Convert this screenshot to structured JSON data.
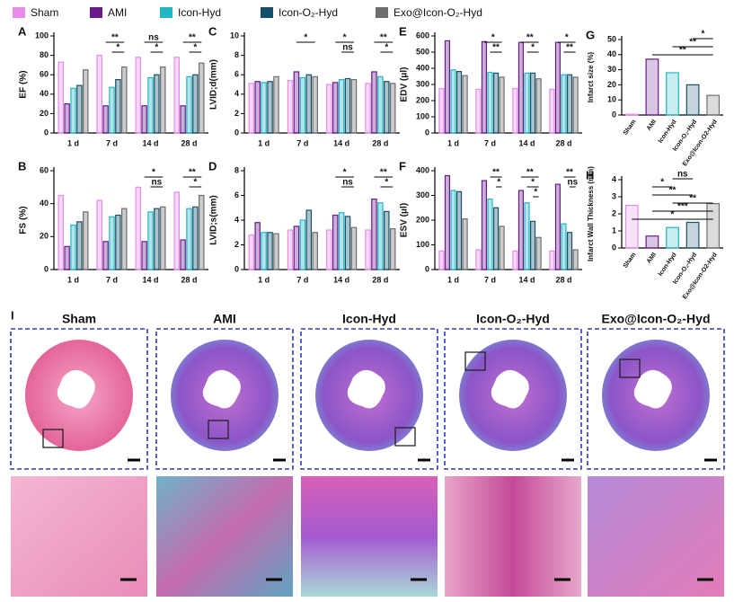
{
  "legend": [
    {
      "name": "Sham",
      "color": "#e58de8"
    },
    {
      "name": "AMI",
      "color": "#6a1b8a"
    },
    {
      "name": "Icon-Hyd",
      "color": "#22b5c2"
    },
    {
      "name": "Icon-O₂-Hyd",
      "color": "#17506a"
    },
    {
      "name": "Exo@Icon-O₂-Hyd",
      "color": "#6e6e6e"
    }
  ],
  "chart_data": [
    {
      "type": "grouped",
      "panel": "A",
      "ylabel": "EF (%)",
      "categories": [
        "1 d",
        "7 d",
        "14 d",
        "28 d"
      ],
      "ylim": [
        0,
        100
      ],
      "yticks": [
        0,
        20,
        40,
        60,
        80,
        100
      ],
      "series": [
        {
          "values": [
            73,
            80,
            78,
            78
          ]
        },
        {
          "values": [
            30,
            28,
            28,
            28
          ]
        },
        {
          "values": [
            46,
            47,
            57,
            58
          ]
        },
        {
          "values": [
            49,
            55,
            60,
            60
          ]
        },
        {
          "values": [
            65,
            68,
            68,
            72
          ]
        }
      ],
      "annotations": [
        {
          "text": "**",
          "category": 1,
          "between": [
            1,
            4
          ]
        },
        {
          "text": "*",
          "category": 1,
          "between": [
            2,
            4
          ]
        },
        {
          "text": "ns",
          "category": 2,
          "between": [
            1,
            4
          ]
        },
        {
          "text": "*",
          "category": 2,
          "between": [
            2,
            4
          ]
        },
        {
          "text": "**",
          "category": 3,
          "between": [
            1,
            4
          ]
        },
        {
          "text": "*",
          "category": 3,
          "between": [
            2,
            4
          ]
        }
      ]
    },
    {
      "type": "grouped",
      "panel": "C",
      "ylabel": "LVID;d(mm)",
      "categories": [
        "1 d",
        "7 d",
        "14 d",
        "28 d"
      ],
      "ylim": [
        0,
        10
      ],
      "yticks": [
        0,
        2,
        4,
        6,
        8,
        10
      ],
      "series": [
        {
          "values": [
            5.1,
            5.4,
            5.0,
            5.1
          ]
        },
        {
          "values": [
            5.3,
            6.3,
            5.2,
            6.3
          ]
        },
        {
          "values": [
            5.2,
            5.7,
            5.5,
            5.8
          ]
        },
        {
          "values": [
            5.3,
            6.0,
            5.6,
            5.3
          ]
        },
        {
          "values": [
            5.8,
            5.8,
            5.5,
            5.1
          ]
        }
      ],
      "annotations": [
        {
          "text": "*",
          "category": 1,
          "between": [
            1,
            4
          ]
        },
        {
          "text": "*",
          "category": 2,
          "between": [
            1,
            4
          ]
        },
        {
          "text": "ns",
          "category": 2,
          "between": [
            2,
            4
          ]
        },
        {
          "text": "**",
          "category": 3,
          "between": [
            1,
            4
          ]
        },
        {
          "text": "*",
          "category": 3,
          "between": [
            2,
            4
          ]
        }
      ]
    },
    {
      "type": "grouped",
      "panel": "E",
      "ylabel": "EDV (μl)",
      "categories": [
        "1 d",
        "7 d",
        "14 d",
        "28 d"
      ],
      "ylim": [
        0,
        600
      ],
      "yticks": [
        0,
        100,
        200,
        300,
        400,
        500,
        600
      ],
      "series": [
        {
          "values": [
            275,
            270,
            275,
            270
          ]
        },
        {
          "values": [
            570,
            565,
            560,
            560
          ]
        },
        {
          "values": [
            390,
            375,
            370,
            360
          ]
        },
        {
          "values": [
            380,
            370,
            370,
            360
          ]
        },
        {
          "values": [
            355,
            345,
            335,
            345
          ]
        }
      ],
      "annotations": [
        {
          "text": "*",
          "category": 1,
          "between": [
            1,
            4
          ]
        },
        {
          "text": "**",
          "category": 1,
          "between": [
            2,
            4
          ]
        },
        {
          "text": "**",
          "category": 2,
          "between": [
            1,
            4
          ]
        },
        {
          "text": "*",
          "category": 2,
          "between": [
            2,
            4
          ]
        },
        {
          "text": "*",
          "category": 3,
          "between": [
            1,
            4
          ]
        },
        {
          "text": "**",
          "category": 3,
          "between": [
            2,
            4
          ]
        }
      ]
    },
    {
      "type": "single",
      "panel": "G",
      "ylabel": "Infarct size (%)",
      "categories": [
        "Sham",
        "AMI",
        "Icon-Hyd",
        "Icon-O₂-Hyd",
        "Exo@Icon-O2-Hyd"
      ],
      "ylim": [
        0,
        50
      ],
      "yticks": [
        0,
        10,
        20,
        30,
        40,
        50
      ],
      "values": [
        0.5,
        37,
        28,
        20,
        13
      ],
      "annotations": [
        {
          "text": "**",
          "between": [
            1,
            4
          ]
        },
        {
          "text": "**",
          "between": [
            2,
            4
          ]
        },
        {
          "text": "*",
          "between": [
            3,
            4
          ]
        }
      ]
    },
    {
      "type": "grouped",
      "panel": "B",
      "ylabel": "FS (%)",
      "categories": [
        "1 d",
        "7 d",
        "14 d",
        "28 d"
      ],
      "ylim": [
        0,
        60
      ],
      "yticks": [
        0,
        20,
        40,
        60
      ],
      "series": [
        {
          "values": [
            45,
            42,
            50,
            47
          ]
        },
        {
          "values": [
            14,
            17,
            17,
            18
          ]
        },
        {
          "values": [
            27,
            32,
            35,
            37
          ]
        },
        {
          "values": [
            29,
            33,
            37,
            38
          ]
        },
        {
          "values": [
            35,
            37,
            38,
            45
          ]
        }
      ],
      "annotations": [
        {
          "text": "*",
          "category": 2,
          "between": [
            1,
            4
          ]
        },
        {
          "text": "ns",
          "category": 2,
          "between": [
            2,
            4
          ]
        },
        {
          "text": "**",
          "category": 3,
          "between": [
            1,
            4
          ]
        },
        {
          "text": "*",
          "category": 3,
          "between": [
            2,
            4
          ]
        }
      ]
    },
    {
      "type": "grouped",
      "panel": "D",
      "ylabel": "LVID;s(mm)",
      "categories": [
        "1 d",
        "7 d",
        "14 d",
        "28 d"
      ],
      "ylim": [
        0,
        8
      ],
      "yticks": [
        0,
        2,
        4,
        6,
        8
      ],
      "series": [
        {
          "values": [
            2.8,
            3.2,
            3.2,
            3.2
          ]
        },
        {
          "values": [
            3.8,
            3.5,
            4.4,
            5.7
          ]
        },
        {
          "values": [
            3.0,
            4.0,
            4.6,
            5.4
          ]
        },
        {
          "values": [
            3.0,
            4.8,
            4.3,
            4.7
          ]
        },
        {
          "values": [
            2.9,
            3.0,
            3.4,
            3.3
          ]
        }
      ],
      "annotations": [
        {
          "text": "*",
          "category": 2,
          "between": [
            1,
            4
          ]
        },
        {
          "text": "ns",
          "category": 2,
          "between": [
            2,
            4
          ]
        },
        {
          "text": "**",
          "category": 3,
          "between": [
            1,
            4
          ]
        },
        {
          "text": "*",
          "category": 3,
          "between": [
            2,
            4
          ]
        }
      ]
    },
    {
      "type": "grouped",
      "panel": "F",
      "ylabel": "ESV (μl)",
      "categories": [
        "1 d",
        "7 d",
        "14 d",
        "28 d"
      ],
      "ylim": [
        0,
        400
      ],
      "yticks": [
        0,
        100,
        200,
        300,
        400
      ],
      "series": [
        {
          "values": [
            75,
            80,
            75,
            75
          ]
        },
        {
          "values": [
            380,
            360,
            320,
            345
          ]
        },
        {
          "values": [
            320,
            285,
            270,
            185
          ]
        },
        {
          "values": [
            315,
            250,
            195,
            150
          ]
        },
        {
          "values": [
            205,
            175,
            130,
            80
          ]
        }
      ],
      "annotations": [
        {
          "text": "**",
          "category": 1,
          "between": [
            2,
            4
          ]
        },
        {
          "text": "*",
          "category": 1,
          "between": [
            3,
            4
          ]
        },
        {
          "text": "**",
          "category": 2,
          "between": [
            1,
            4
          ]
        },
        {
          "text": "*",
          "category": 2,
          "between": [
            2,
            4
          ]
        },
        {
          "text": "*",
          "category": 2,
          "between": [
            3,
            4
          ]
        },
        {
          "text": "**",
          "category": 3,
          "between": [
            2,
            4
          ]
        },
        {
          "text": "ns",
          "category": 3,
          "between": [
            3,
            4
          ]
        }
      ]
    },
    {
      "type": "single",
      "panel": "H",
      "ylabel": "Infarct Wall Thickness (mm)",
      "categories": [
        "Sham",
        "AMI",
        "Icon-Hyd",
        "Icon-O₂-Hyd",
        "Exo@Icon-O2-Hyd"
      ],
      "ylim": [
        0,
        4
      ],
      "yticks": [
        0,
        1,
        2,
        3,
        4
      ],
      "values": [
        2.5,
        0.7,
        1.2,
        1.5,
        2.6
      ],
      "annotations": [
        {
          "text": "*",
          "between": [
            0,
            4
          ]
        },
        {
          "text": "***",
          "between": [
            1,
            4
          ]
        },
        {
          "text": "**",
          "between": [
            2,
            4
          ]
        },
        {
          "text": "**",
          "between": [
            1,
            3
          ]
        },
        {
          "text": "*",
          "between": [
            1,
            2
          ]
        },
        {
          "text": "ns",
          "between": [
            2,
            3
          ]
        }
      ]
    }
  ],
  "histology": {
    "panel": "I",
    "groups": [
      "Sham",
      "AMI",
      "Icon-Hyd",
      "Icon-O₂-Hyd",
      "Exo@Icon-O₂-Hyd"
    ]
  }
}
